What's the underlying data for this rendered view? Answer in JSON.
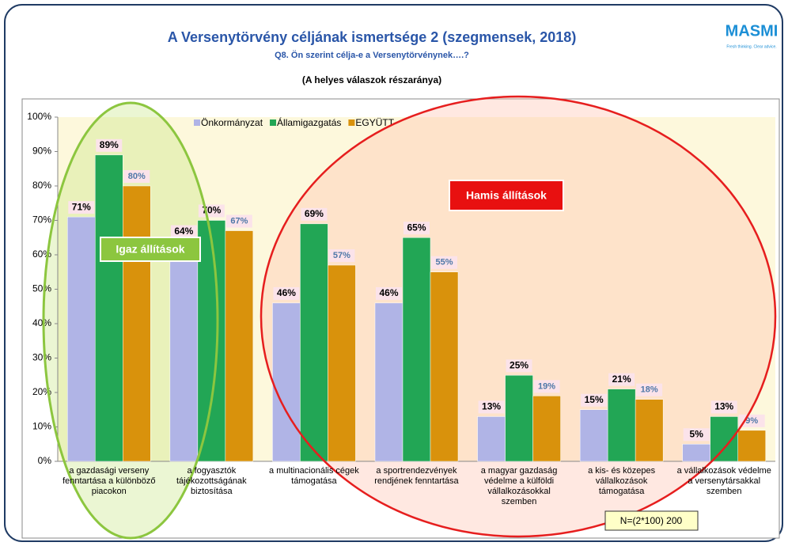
{
  "chart_data": {
    "type": "bar",
    "title": "A Versenytörvény céljának ismertsége 2 (szegmensek, 2018)",
    "subtitle": "Q8. Ön szerint célja-e a Versenytörvénynek….?",
    "note": "(A helyes válaszok részaránya)",
    "logo": "MASMI",
    "logo_tagline": "Fresh thinking. Clear advice.",
    "categories": [
      "a gazdasági verseny fenntartása a különböző piacokon",
      "a fogyasztók tájékozottságának biztosítása",
      "a multinacionális cégek támogatása",
      "a sportrendezvények rendjének fenntartása",
      "a magyar gazdaság védelme a külföldi vállalkozásokkal szemben",
      "a kis- és közepes vállalkozások támogatása",
      "a vállalkozások védelme a versenytársakkal szemben"
    ],
    "series": [
      {
        "name": "Önkormányzat",
        "color": "#b0b4e6",
        "values": [
          71,
          64,
          46,
          46,
          13,
          15,
          5
        ],
        "value_labels": [
          "71%",
          "64%",
          "46%",
          "46%",
          "13%",
          "15%",
          "5%"
        ]
      },
      {
        "name": "Államigazgatás",
        "color": "#22a655",
        "values": [
          89,
          70,
          69,
          65,
          25,
          21,
          13
        ],
        "value_labels": [
          "89%",
          "70%",
          "69%",
          "65%",
          "25%",
          "21%",
          "13%"
        ]
      },
      {
        "name": "EGYÜTT",
        "color": "#d9920c",
        "values": [
          80,
          67,
          57,
          55,
          19,
          18,
          9
        ],
        "value_labels": [
          "80%",
          "67%",
          "57%",
          "55%",
          "19%",
          "18%",
          "9%"
        ]
      }
    ],
    "ylim": [
      0,
      100
    ],
    "yticks": [
      {
        "value": 0,
        "label": "0%"
      },
      {
        "value": 10,
        "label": "10%"
      },
      {
        "value": 20,
        "label": "20%"
      },
      {
        "value": 30,
        "label": "30%"
      },
      {
        "value": 40,
        "label": "40%"
      },
      {
        "value": 50,
        "label": "50%"
      },
      {
        "value": 60,
        "label": "60%"
      },
      {
        "value": 70,
        "label": "70%"
      },
      {
        "value": 80,
        "label": "80%"
      },
      {
        "value": 90,
        "label": "90%"
      },
      {
        "value": 100,
        "label": "100%"
      }
    ],
    "legend": "top",
    "annotations": [
      "Igaz állítások",
      "Hamis állítások",
      "N=(2*100) 200"
    ]
  }
}
